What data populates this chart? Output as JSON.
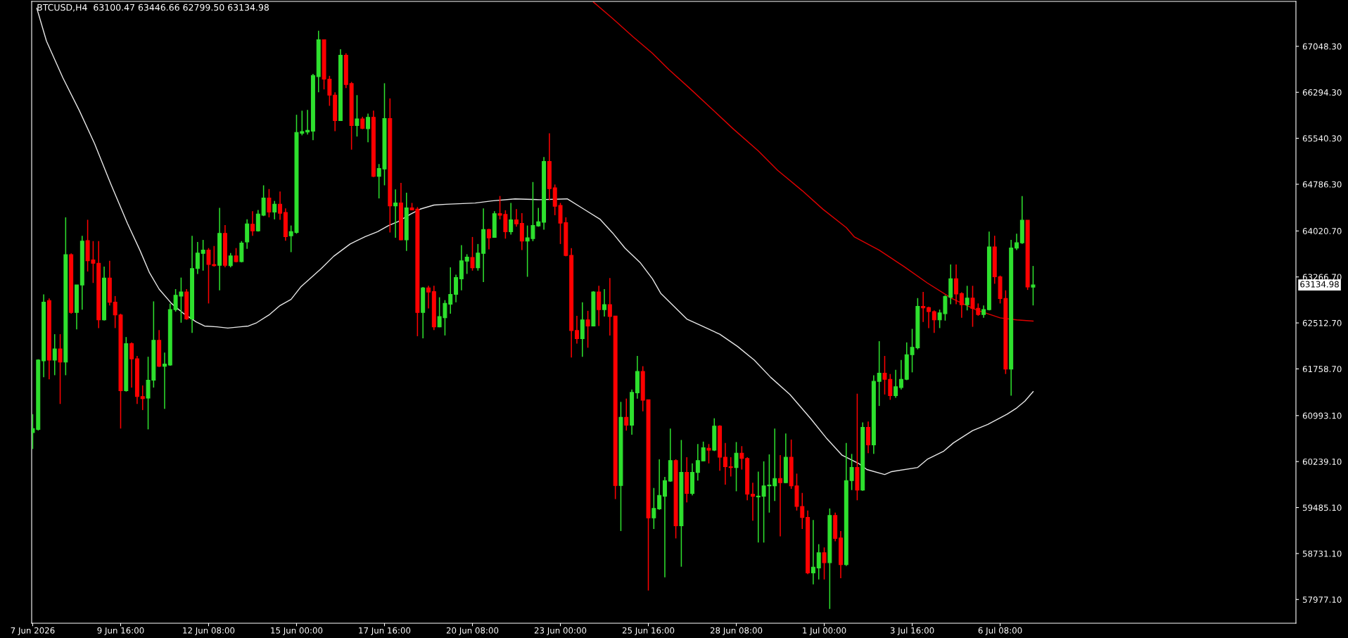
{
  "chart_data": {
    "type": "candlestick",
    "title": "BTCUSD,H4  63100.47 63446.66 62799.50 63134.98",
    "x": [
      "2026-06-07T00:00",
      "2026-06-07T04:00",
      "2026-06-07T08:00",
      "2026-06-07T12:00",
      "2026-06-07T16:00",
      "2026-06-07T20:00",
      "2026-06-08T00:00",
      "2026-06-08T04:00",
      "2026-06-08T08:00",
      "2026-06-08T12:00",
      "2026-06-08T16:00",
      "2026-06-08T20:00",
      "2026-06-09T00:00",
      "2026-06-09T04:00",
      "2026-06-09T08:00",
      "2026-06-09T12:00",
      "2026-06-09T16:00",
      "2026-06-09T20:00",
      "2026-06-10T00:00",
      "2026-06-10T04:00",
      "2026-06-10T08:00",
      "2026-06-10T12:00",
      "2026-06-10T16:00",
      "2026-06-10T20:00",
      "2026-06-11T00:00",
      "2026-06-11T04:00",
      "2026-06-11T08:00",
      "2026-06-11T12:00",
      "2026-06-11T16:00",
      "2026-06-11T20:00",
      "2026-06-12T00:00",
      "2026-06-12T04:00",
      "2026-06-12T08:00",
      "2026-06-12T12:00",
      "2026-06-12T16:00",
      "2026-06-12T20:00",
      "2026-06-13T00:00",
      "2026-06-13T04:00",
      "2026-06-13T08:00",
      "2026-06-13T12:00",
      "2026-06-13T16:00",
      "2026-06-13T20:00",
      "2026-06-14T00:00",
      "2026-06-14T04:00",
      "2026-06-14T08:00",
      "2026-06-14T12:00",
      "2026-06-14T16:00",
      "2026-06-14T20:00",
      "2026-06-15T00:00",
      "2026-06-15T04:00",
      "2026-06-15T08:00",
      "2026-06-15T12:00",
      "2026-06-15T16:00",
      "2026-06-15T20:00",
      "2026-06-16T00:00",
      "2026-06-16T04:00",
      "2026-06-16T08:00",
      "2026-06-16T12:00",
      "2026-06-16T16:00",
      "2026-06-16T20:00",
      "2026-06-17T00:00",
      "2026-06-17T04:00",
      "2026-06-17T08:00",
      "2026-06-17T12:00",
      "2026-06-17T16:00",
      "2026-06-17T20:00",
      "2026-06-18T00:00",
      "2026-06-18T04:00",
      "2026-06-18T08:00",
      "2026-06-18T12:00",
      "2026-06-18T16:00",
      "2026-06-18T20:00",
      "2026-06-19T00:00",
      "2026-06-19T04:00",
      "2026-06-19T08:00",
      "2026-06-19T12:00",
      "2026-06-19T16:00",
      "2026-06-19T20:00",
      "2026-06-20T00:00",
      "2026-06-20T04:00",
      "2026-06-20T08:00",
      "2026-06-20T12:00",
      "2026-06-20T16:00",
      "2026-06-20T20:00",
      "2026-06-21T00:00",
      "2026-06-21T04:00",
      "2026-06-21T08:00",
      "2026-06-21T12:00",
      "2026-06-21T16:00",
      "2026-06-21T20:00",
      "2026-06-22T00:00",
      "2026-06-22T04:00",
      "2026-06-22T08:00",
      "2026-06-22T12:00",
      "2026-06-22T16:00",
      "2026-06-22T20:00",
      "2026-06-23T00:00",
      "2026-06-23T04:00",
      "2026-06-23T08:00",
      "2026-06-23T12:00",
      "2026-06-23T16:00",
      "2026-06-23T20:00",
      "2026-06-24T00:00",
      "2026-06-24T04:00",
      "2026-06-24T08:00",
      "2026-06-24T12:00",
      "2026-06-24T16:00",
      "2026-06-24T20:00",
      "2026-06-25T00:00",
      "2026-06-25T04:00",
      "2026-06-25T08:00",
      "2026-06-25T12:00",
      "2026-06-25T16:00",
      "2026-06-25T20:00",
      "2026-06-26T00:00",
      "2026-06-26T04:00",
      "2026-06-26T08:00",
      "2026-06-26T12:00",
      "2026-06-26T16:00",
      "2026-06-26T20:00",
      "2026-06-27T00:00",
      "2026-06-27T04:00",
      "2026-06-27T08:00",
      "2026-06-27T12:00",
      "2026-06-27T16:00",
      "2026-06-27T20:00",
      "2026-06-28T00:00",
      "2026-06-28T04:00",
      "2026-06-28T08:00",
      "2026-06-28T12:00",
      "2026-06-28T16:00",
      "2026-06-28T20:00",
      "2026-06-29T00:00",
      "2026-06-29T04:00",
      "2026-06-29T08:00",
      "2026-06-29T12:00",
      "2026-06-29T16:00",
      "2026-06-29T20:00",
      "2026-06-30T00:00",
      "2026-06-30T04:00",
      "2026-06-30T08:00",
      "2026-06-30T12:00",
      "2026-06-30T16:00",
      "2026-06-30T20:00",
      "2026-07-01T00:00",
      "2026-07-01T04:00",
      "2026-07-01T08:00",
      "2026-07-01T12:00",
      "2026-07-01T16:00",
      "2026-07-01T20:00",
      "2026-07-02T00:00",
      "2026-07-02T04:00",
      "2026-07-02T08:00",
      "2026-07-02T12:00",
      "2026-07-02T16:00",
      "2026-07-02T20:00",
      "2026-07-03T00:00",
      "2026-07-03T04:00",
      "2026-07-03T08:00",
      "2026-07-03T12:00",
      "2026-07-03T16:00",
      "2026-07-03T20:00",
      "2026-07-04T00:00",
      "2026-07-04T04:00",
      "2026-07-04T08:00",
      "2026-07-04T12:00",
      "2026-07-04T16:00",
      "2026-07-04T20:00",
      "2026-07-05T00:00",
      "2026-07-05T04:00",
      "2026-07-05T08:00",
      "2026-07-05T12:00",
      "2026-07-05T16:00",
      "2026-07-05T20:00",
      "2026-07-06T00:00",
      "2026-07-06T04:00",
      "2026-07-06T08:00",
      "2026-07-06T12:00",
      "2026-07-06T16:00",
      "2026-07-06T20:00",
      "2026-07-07T00:00",
      "2026-07-07T04:00",
      "2026-07-07T08:00"
    ],
    "ohlc": [
      [
        60714,
        61016,
        60445,
        60781
      ],
      [
        60767,
        61917,
        60747,
        61904
      ],
      [
        61890,
        62980,
        61622,
        62852
      ],
      [
        62879,
        62913,
        61588,
        61904
      ],
      [
        61904,
        62328,
        61655,
        62086
      ],
      [
        62086,
        62328,
        61184,
        61870
      ],
      [
        61870,
        64244,
        61655,
        63632
      ],
      [
        63632,
        63652,
        62664,
        62684
      ],
      [
        62684,
        63135,
        62408,
        63135
      ],
      [
        63135,
        63942,
        62731,
        63854
      ],
      [
        63861,
        64204,
        63356,
        63531
      ],
      [
        63545,
        63854,
        63168,
        63491
      ],
      [
        63491,
        63854,
        62428,
        62563
      ],
      [
        62563,
        63437,
        62550,
        63249
      ],
      [
        63249,
        63531,
        62798,
        62852
      ],
      [
        62852,
        62953,
        62428,
        62644
      ],
      [
        62644,
        62664,
        60781,
        61400
      ],
      [
        61400,
        62281,
        61386,
        62173
      ],
      [
        62173,
        62193,
        61453,
        61924
      ],
      [
        61924,
        61971,
        61184,
        61305
      ],
      [
        61305,
        61487,
        61084,
        61272
      ],
      [
        61279,
        61958,
        60767,
        61574
      ],
      [
        61574,
        62866,
        61453,
        62227
      ],
      [
        62227,
        62395,
        61790,
        61803
      ],
      [
        61803,
        62025,
        61104,
        61837
      ],
      [
        61823,
        62832,
        61810,
        62731
      ],
      [
        62731,
        63067,
        62698,
        62967
      ],
      [
        62953,
        63256,
        62516,
        63020
      ],
      [
        63020,
        63067,
        62563,
        62577
      ],
      [
        62577,
        63942,
        62348,
        63404
      ],
      [
        63404,
        63841,
        63316,
        63659
      ],
      [
        63652,
        63874,
        63370,
        63706
      ],
      [
        63706,
        63740,
        62832,
        63471
      ],
      [
        63471,
        63774,
        63437,
        63451
      ],
      [
        63457,
        64399,
        63047,
        63982
      ],
      [
        63982,
        64117,
        63424,
        63457
      ],
      [
        63451,
        63659,
        63424,
        63612
      ],
      [
        63612,
        63740,
        63505,
        63518
      ],
      [
        63518,
        63854,
        63505,
        63821
      ],
      [
        63841,
        64211,
        63727,
        64137
      ],
      [
        64130,
        64345,
        63942,
        64022
      ],
      [
        64022,
        64365,
        64009,
        64298
      ],
      [
        64278,
        64769,
        64264,
        64560
      ],
      [
        64560,
        64708,
        64244,
        64332
      ],
      [
        64332,
        64513,
        64211,
        64460
      ],
      [
        64460,
        64668,
        64204,
        64312
      ],
      [
        64325,
        64392,
        63861,
        63928
      ],
      [
        63942,
        64110,
        63673,
        64009
      ],
      [
        63996,
        65926,
        63975,
        65636
      ],
      [
        65623,
        65993,
        65589,
        65650
      ],
      [
        65643,
        66006,
        65603,
        65670
      ],
      [
        65657,
        66598,
        65509,
        66571
      ],
      [
        66551,
        67304,
        66295,
        67156
      ],
      [
        67156,
        67156,
        66342,
        66511
      ],
      [
        66511,
        66564,
        66073,
        66248
      ],
      [
        66248,
        66295,
        65657,
        65831
      ],
      [
        65831,
        67001,
        65825,
        66901
      ],
      [
        66901,
        66934,
        66363,
        66423
      ],
      [
        66437,
        66464,
        65354,
        65751
      ],
      [
        65751,
        66248,
        65569,
        65858
      ],
      [
        65858,
        65892,
        65690,
        65704
      ],
      [
        65697,
        65946,
        65475,
        65885
      ],
      [
        65885,
        65993,
        64903,
        64917
      ],
      [
        64917,
        65118,
        64554,
        65044
      ],
      [
        65038,
        66443,
        64769,
        65865
      ],
      [
        65865,
        66194,
        63996,
        64432
      ],
      [
        64432,
        64701,
        63908,
        64480
      ],
      [
        64480,
        64809,
        63868,
        63874
      ],
      [
        63874,
        64648,
        63693,
        64399
      ],
      [
        64399,
        64480,
        64359,
        64365
      ],
      [
        64379,
        64412,
        62294,
        62684
      ],
      [
        62684,
        63101,
        62260,
        63087
      ],
      [
        63087,
        63121,
        62751,
        63020
      ],
      [
        63027,
        63121,
        62395,
        62449
      ],
      [
        62449,
        62933,
        62442,
        62617
      ],
      [
        62597,
        62886,
        62307,
        62832
      ],
      [
        62819,
        63424,
        62664,
        62980
      ],
      [
        62980,
        63303,
        62852,
        63256
      ],
      [
        63236,
        63787,
        63047,
        63531
      ],
      [
        63525,
        63639,
        63316,
        63592
      ],
      [
        63585,
        63922,
        63370,
        63417
      ],
      [
        63417,
        63807,
        63370,
        63659
      ],
      [
        63652,
        64392,
        63182,
        64043
      ],
      [
        64043,
        64056,
        63720,
        63908
      ],
      [
        63915,
        64345,
        63908,
        64305
      ],
      [
        64305,
        64594,
        64211,
        64278
      ],
      [
        64291,
        64359,
        63895,
        64009
      ],
      [
        64009,
        64480,
        63962,
        64204
      ],
      [
        64204,
        64379,
        64090,
        64137
      ],
      [
        64144,
        64312,
        63706,
        63854
      ],
      [
        63854,
        64110,
        63269,
        63908
      ],
      [
        63895,
        64823,
        63854,
        64110
      ],
      [
        64103,
        64399,
        64090,
        64170
      ],
      [
        64164,
        65233,
        64043,
        65159
      ],
      [
        65159,
        65623,
        64527,
        64715
      ],
      [
        64729,
        64782,
        64278,
        64426
      ],
      [
        64439,
        64480,
        63807,
        64150
      ],
      [
        64157,
        64244,
        63605,
        63619
      ],
      [
        63619,
        63740,
        61944,
        62388
      ],
      [
        62388,
        62630,
        62173,
        62254
      ],
      [
        62254,
        62852,
        61958,
        62563
      ],
      [
        62563,
        62711,
        62106,
        62462
      ],
      [
        62462,
        63034,
        62455,
        63020
      ],
      [
        63020,
        63121,
        62462,
        62731
      ],
      [
        62731,
        63067,
        62617,
        62812
      ],
      [
        62812,
        63249,
        62307,
        62617
      ],
      [
        62624,
        62630,
        59624,
        59846
      ],
      [
        59846,
        61218,
        59100,
        60963
      ],
      [
        60963,
        61272,
        60747,
        60835
      ],
      [
        60835,
        61420,
        60680,
        61373
      ],
      [
        61366,
        61971,
        61272,
        61716
      ],
      [
        61716,
        61803,
        61063,
        61245
      ],
      [
        61252,
        61252,
        58125,
        59315
      ],
      [
        59315,
        59806,
        59133,
        59470
      ],
      [
        59463,
        60277,
        59449,
        59685
      ],
      [
        59671,
        59987,
        58340,
        59927
      ],
      [
        59920,
        60781,
        59907,
        60256
      ],
      [
        60256,
        60277,
        58979,
        59187
      ],
      [
        59187,
        60593,
        58515,
        60061
      ],
      [
        60061,
        60310,
        59570,
        59718
      ],
      [
        59718,
        60209,
        59685,
        60061
      ],
      [
        60061,
        60526,
        59927,
        60256
      ],
      [
        60249,
        60566,
        60249,
        60465
      ],
      [
        60458,
        60526,
        60209,
        60425
      ],
      [
        60425,
        60949,
        60411,
        60821
      ],
      [
        60821,
        60835,
        60088,
        60310
      ],
      [
        60310,
        60545,
        59860,
        60155
      ],
      [
        60155,
        60310,
        59994,
        60142
      ],
      [
        60142,
        60559,
        59752,
        60377
      ],
      [
        60377,
        60492,
        60108,
        60290
      ],
      [
        60290,
        60310,
        59604,
        59705
      ],
      [
        59705,
        59893,
        59268,
        59671
      ],
      [
        59658,
        60075,
        58911,
        59671
      ],
      [
        59671,
        60243,
        58911,
        59840
      ],
      [
        59840,
        60357,
        59402,
        59853
      ],
      [
        59840,
        60781,
        59591,
        59961
      ],
      [
        59961,
        60344,
        59012,
        59893
      ],
      [
        59893,
        60700,
        59886,
        60310
      ],
      [
        60310,
        60600,
        59792,
        59840
      ],
      [
        59840,
        60041,
        59436,
        59503
      ],
      [
        59503,
        59725,
        59133,
        59322
      ],
      [
        59322,
        59436,
        58394,
        58414
      ],
      [
        58414,
        59281,
        58225,
        58508
      ],
      [
        58494,
        58884,
        58306,
        58743
      ],
      [
        58743,
        58831,
        58306,
        58582
      ],
      [
        58582,
        59470,
        57822,
        59355
      ],
      [
        59355,
        59402,
        58931,
        58979
      ],
      [
        58985,
        59100,
        58326,
        58548
      ],
      [
        58548,
        60545,
        58528,
        59927
      ],
      [
        59927,
        60364,
        59772,
        60142
      ],
      [
        60142,
        61352,
        59604,
        59772
      ],
      [
        59772,
        60882,
        59759,
        60801
      ],
      [
        60801,
        60895,
        60377,
        60512
      ],
      [
        60512,
        61655,
        60364,
        61554
      ],
      [
        61554,
        62213,
        61151,
        61689
      ],
      [
        61689,
        61971,
        61339,
        61588
      ],
      [
        61588,
        61675,
        61252,
        61319
      ],
      [
        61319,
        61743,
        61285,
        61467
      ],
      [
        61453,
        61904,
        61420,
        61588
      ],
      [
        61588,
        62193,
        61574,
        61991
      ],
      [
        61991,
        62415,
        61702,
        62112
      ],
      [
        62106,
        62920,
        62079,
        62785
      ],
      [
        62785,
        63020,
        62529,
        62758
      ],
      [
        62765,
        62778,
        62428,
        62698
      ],
      [
        62698,
        62718,
        62348,
        62563
      ],
      [
        62563,
        62731,
        62428,
        62677
      ],
      [
        62664,
        62967,
        62550,
        62946
      ],
      [
        62933,
        63471,
        62819,
        63236
      ],
      [
        63236,
        63471,
        62819,
        62987
      ],
      [
        62993,
        63014,
        62597,
        62812
      ],
      [
        62812,
        63121,
        62718,
        62919
      ],
      [
        62919,
        63121,
        62449,
        62751
      ],
      [
        62751,
        62832,
        62630,
        62650
      ],
      [
        62650,
        62798,
        62597,
        62731
      ],
      [
        62731,
        64009,
        62718,
        63760
      ],
      [
        63760,
        63942,
        63155,
        63269
      ],
      [
        63269,
        63289,
        62832,
        62913
      ],
      [
        62913,
        63047,
        61675,
        61756
      ],
      [
        61756,
        63874,
        61319,
        63740
      ],
      [
        63740,
        63975,
        63706,
        63827
      ],
      [
        63827,
        64594,
        63807,
        64197
      ],
      [
        64197,
        64197,
        63054,
        63101
      ],
      [
        63100.47,
        63446.66,
        62799.5,
        63134.98
      ]
    ],
    "series": [
      {
        "type": "line",
        "color": "#e8e8e8",
        "x": [
          "2026-06-07T03:00",
          "2026-06-07T10:00",
          "2026-06-07T22:00",
          "2026-06-08T10:00",
          "2026-06-08T21:00",
          "2026-06-09T09:00",
          "2026-06-09T21:00",
          "2026-06-10T06:00",
          "2026-06-10T13:00",
          "2026-06-10T20:00",
          "2026-06-11T05:00",
          "2026-06-11T14:00",
          "2026-06-11T23:00",
          "2026-06-12T05:00",
          "2026-06-12T14:00",
          "2026-06-12T22:00",
          "2026-06-13T07:00",
          "2026-06-13T13:00",
          "2026-06-13T19:00",
          "2026-06-14T04:00",
          "2026-06-14T12:00",
          "2026-06-14T20:00",
          "2026-06-15T03:00",
          "2026-06-15T18:00",
          "2026-06-16T03:00",
          "2026-06-16T15:00",
          "2026-06-17T02:00",
          "2026-06-17T11:00",
          "2026-06-17T19:00",
          "2026-06-18T02:00",
          "2026-06-18T11:00",
          "2026-06-18T18:00",
          "2026-06-19T04:00",
          "2026-06-19T13:00",
          "2026-06-20T10:00",
          "2026-06-20T22:00",
          "2026-06-21T15:00",
          "2026-06-22T09:00",
          "2026-06-23T05:00",
          "2026-06-23T17:00",
          "2026-06-24T05:00",
          "2026-06-24T14:00",
          "2026-06-24T23:00",
          "2026-06-25T10:00",
          "2026-06-25T19:00",
          "2026-06-26T01:00",
          "2026-06-26T20:00",
          "2026-06-27T07:00",
          "2026-06-27T20:00",
          "2026-06-28T09:00",
          "2026-06-28T21:00",
          "2026-06-29T09:00",
          "2026-06-29T23:00",
          "2026-06-30T14:00",
          "2026-07-01T02:00",
          "2026-07-01T13:00",
          "2026-07-02T01:00",
          "2026-07-02T07:00",
          "2026-07-02T20:00",
          "2026-07-03T01:00",
          "2026-07-03T20:00",
          "2026-07-04T03:00",
          "2026-07-04T15:00",
          "2026-07-04T22:00",
          "2026-07-05T12:00",
          "2026-07-05T23:00",
          "2026-07-06T13:00",
          "2026-07-06T20:00",
          "2026-07-07T02:00",
          "2026-07-07T08:00"
        ],
        "values": [
          67674,
          67136,
          66531,
          65993,
          65455,
          64782,
          64143,
          63706,
          63336,
          63067,
          62832,
          62664,
          62529,
          62462,
          62448,
          62428,
          62448,
          62462,
          62516,
          62644,
          62798,
          62899,
          63101,
          63404,
          63605,
          63807,
          63928,
          64009,
          64110,
          64177,
          64298,
          64379,
          64446,
          64459,
          64479,
          64513,
          64547,
          64533,
          64547,
          64379,
          64210,
          63988,
          63739,
          63504,
          63235,
          62999,
          62576,
          62462,
          62327,
          62126,
          61904,
          61621,
          61339,
          60948,
          60612,
          60343,
          60209,
          60108,
          60027,
          60074,
          60142,
          60276,
          60411,
          60545,
          60747,
          60848,
          61016,
          61117,
          61231,
          61386
        ]
      },
      {
        "type": "line",
        "color": "#e00000",
        "x": [
          "2026-06-24T00:00",
          "2026-06-24T14:00",
          "2026-06-25T05:00",
          "2026-06-25T19:00",
          "2026-06-26T07:00",
          "2026-06-26T22:00",
          "2026-06-27T15:00",
          "2026-06-28T06:00",
          "2026-06-29T00:00",
          "2026-06-29T14:00",
          "2026-06-30T08:00",
          "2026-06-30T23:00",
          "2026-07-01T16:00",
          "2026-07-01T22:00",
          "2026-07-02T16:00",
          "2026-07-03T10:00",
          "2026-07-04T03:00",
          "2026-07-04T21:00",
          "2026-07-05T14:00",
          "2026-07-06T08:00",
          "2026-07-06T20:00",
          "2026-07-07T08:00"
        ],
        "values": [
          67775,
          67506,
          67203,
          66934,
          66665,
          66362,
          66006,
          65690,
          65333,
          65017,
          64681,
          64378,
          64076,
          63921,
          63706,
          63437,
          63168,
          62912,
          62731,
          62596,
          62563,
          62543
        ]
      }
    ],
    "xlim": [
      "2026-06-06T23:15",
      "2026-07-15T07:15"
    ],
    "xticks": [
      {
        "value": "2026-06-07T00:00",
        "label": "7 Jun 2026"
      },
      {
        "value": "2026-06-09T16:00",
        "label": "9 Jun 16:00"
      },
      {
        "value": "2026-06-12T08:00",
        "label": "12 Jun 08:00"
      },
      {
        "value": "2026-06-15T00:00",
        "label": "15 Jun 00:00"
      },
      {
        "value": "2026-06-17T16:00",
        "label": "17 Jun 16:00"
      },
      {
        "value": "2026-06-20T08:00",
        "label": "20 Jun 08:00"
      },
      {
        "value": "2026-06-23T00:00",
        "label": "23 Jun 00:00"
      },
      {
        "value": "2026-06-25T16:00",
        "label": "25 Jun 16:00"
      },
      {
        "value": "2026-06-28T08:00",
        "label": "28 Jun 08:00"
      },
      {
        "value": "2026-07-01T00:00",
        "label": "1 Jul 00:00"
      },
      {
        "value": "2026-07-03T16:00",
        "label": "3 Jul 16:00"
      },
      {
        "value": "2026-07-06T08:00",
        "label": "6 Jul 08:00"
      }
    ],
    "ylim": [
      57588,
      67785
    ],
    "yticks": [
      {
        "value": 67048.3,
        "label": "67048.30"
      },
      {
        "value": 66294.3,
        "label": "66294.30"
      },
      {
        "value": 65540.3,
        "label": "65540.30"
      },
      {
        "value": 64786.3,
        "label": "64786.30"
      },
      {
        "value": 64020.7,
        "label": "64020.70"
      },
      {
        "value": 63266.7,
        "label": "63266.70"
      },
      {
        "value": 62512.7,
        "label": "62512.70"
      },
      {
        "value": 61758.7,
        "label": "61758.70"
      },
      {
        "value": 60993.1,
        "label": "60993.10"
      },
      {
        "value": 60239.1,
        "label": "60239.10"
      },
      {
        "value": 59485.1,
        "label": "59485.10"
      },
      {
        "value": 58731.1,
        "label": "58731.10"
      },
      {
        "value": 57977.1,
        "label": "57977.10"
      }
    ],
    "annotations": [
      "63134.98"
    ],
    "grid": false,
    "legend": false
  }
}
